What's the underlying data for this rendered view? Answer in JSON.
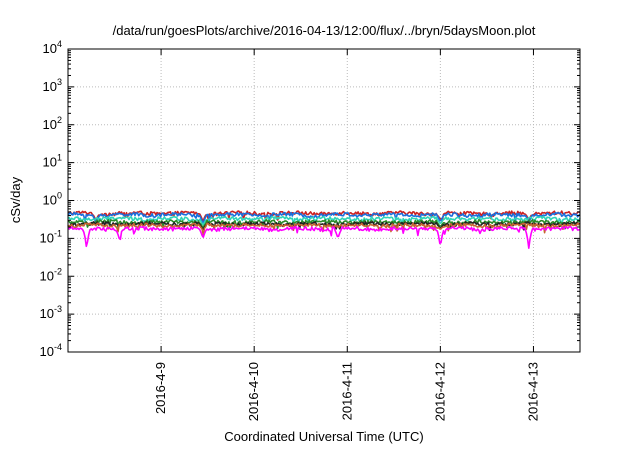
{
  "chart_data": {
    "type": "line",
    "title": "/data/run/goesPlots/archive/2016-04-13/12:00/flux/../bryn/5daysMoon.plot",
    "xlabel": "Coordinated Universal Time (UTC)",
    "ylabel": "cSv/day",
    "y_scale": "log",
    "ylim": [
      0.0001,
      10000
    ],
    "y_ticks": [
      {
        "value": 0.0001,
        "base": "10",
        "exp": "-4"
      },
      {
        "value": 0.001,
        "base": "10",
        "exp": "-3"
      },
      {
        "value": 0.01,
        "base": "10",
        "exp": "-2"
      },
      {
        "value": 0.1,
        "base": "10",
        "exp": "-1"
      },
      {
        "value": 1,
        "base": "10",
        "exp": "0"
      },
      {
        "value": 10,
        "base": "10",
        "exp": "1"
      },
      {
        "value": 100,
        "base": "10",
        "exp": "2"
      },
      {
        "value": 1000,
        "base": "10",
        "exp": "3"
      },
      {
        "value": 10000,
        "base": "10",
        "exp": "4"
      }
    ],
    "xlim": [
      "2016-04-08 00:00",
      "2016-04-13 12:00"
    ],
    "x_ticks": [
      "2016-4-9",
      "2016-4-10",
      "2016-4-11",
      "2016-4-12",
      "2016-4-13"
    ],
    "grid": true,
    "series": [
      {
        "color": "#cc2222",
        "level": 0.46,
        "dips": [
          [
            0.3,
            0.3
          ],
          [
            1.45,
            0.28
          ],
          [
            4.0,
            0.3
          ],
          [
            4.95,
            0.3
          ]
        ]
      },
      {
        "color": "#1a6fdc",
        "level": 0.42,
        "dips": [
          [
            0.3,
            0.26
          ],
          [
            1.45,
            0.24
          ],
          [
            4.0,
            0.27
          ],
          [
            4.95,
            0.26
          ]
        ]
      },
      {
        "color": "#2fd4b8",
        "level": 0.33,
        "dips": [
          [
            1.45,
            0.22
          ],
          [
            4.0,
            0.24
          ]
        ]
      },
      {
        "color": "#2a8a2a",
        "level": 0.27,
        "dips": [
          [
            1.45,
            0.19
          ],
          [
            4.0,
            0.2
          ]
        ]
      },
      {
        "color": "#222222",
        "level": 0.24,
        "dips": [
          [
            1.45,
            0.17
          ],
          [
            4.0,
            0.18
          ]
        ]
      },
      {
        "color": "#c86432",
        "level": 0.22,
        "dips": [
          [
            1.45,
            0.16
          ],
          [
            4.0,
            0.17
          ]
        ]
      },
      {
        "color": "#ff00ff",
        "level": 0.18,
        "dips": [
          [
            0.2,
            0.05
          ],
          [
            0.55,
            0.1
          ],
          [
            1.45,
            0.1
          ],
          [
            2.9,
            0.1
          ],
          [
            4.0,
            0.055
          ],
          [
            4.95,
            0.055
          ]
        ]
      }
    ]
  }
}
